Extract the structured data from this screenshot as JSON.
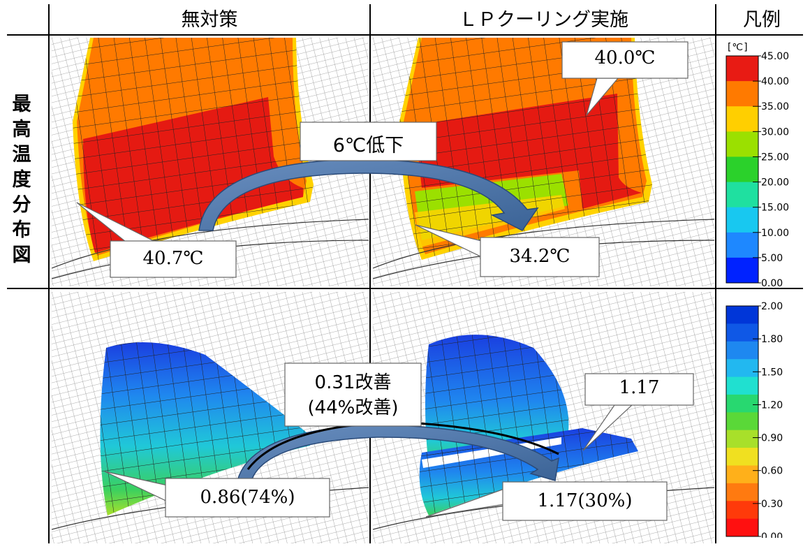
{
  "headers": {
    "col_no_measure": "無対策",
    "col_lp_cooling": "ＬＰクーリング実施",
    "col_legend": "凡例"
  },
  "row_label_chars": [
    "最",
    "高",
    "温",
    "度",
    "分",
    "布",
    "図"
  ],
  "top_row": {
    "left_callout": "40.7℃",
    "right_callout_top": "40.0℃",
    "right_callout_bottom": "34.2℃",
    "arrow_label": "6℃低下"
  },
  "bottom_row": {
    "left_callout": "0.86(74%)",
    "right_callout_top": "1.17",
    "right_callout_bottom": "1.17(30%)",
    "arrow_label_line1": "0.31改善",
    "arrow_label_line2": "(44%改善)"
  },
  "legend_temp": {
    "unit": "[℃]",
    "ticks": [
      "45.00",
      "40.00",
      "35.00",
      "30.00",
      "25.00",
      "20.00",
      "15.00",
      "10.00",
      "5.00",
      "0.00"
    ],
    "colors": [
      "#e81b14",
      "#ff7a00",
      "#ffcf00",
      "#9be000",
      "#2bd12b",
      "#1fe0a0",
      "#18c8f0",
      "#1e88ff",
      "#0022ff"
    ]
  },
  "legend_ratio": {
    "ticks": [
      "2.00",
      "1.80",
      "1.50",
      "1.20",
      "0.90",
      "0.60",
      "0.30",
      "0.00"
    ],
    "colors": [
      "#0036d8",
      "#0f58e6",
      "#1e88f0",
      "#22b8f0",
      "#20e0d0",
      "#28d870",
      "#5ad838",
      "#a8e02a",
      "#f0e020",
      "#ffb01a",
      "#ff7a10",
      "#ff3a0a",
      "#ff1010"
    ]
  }
}
